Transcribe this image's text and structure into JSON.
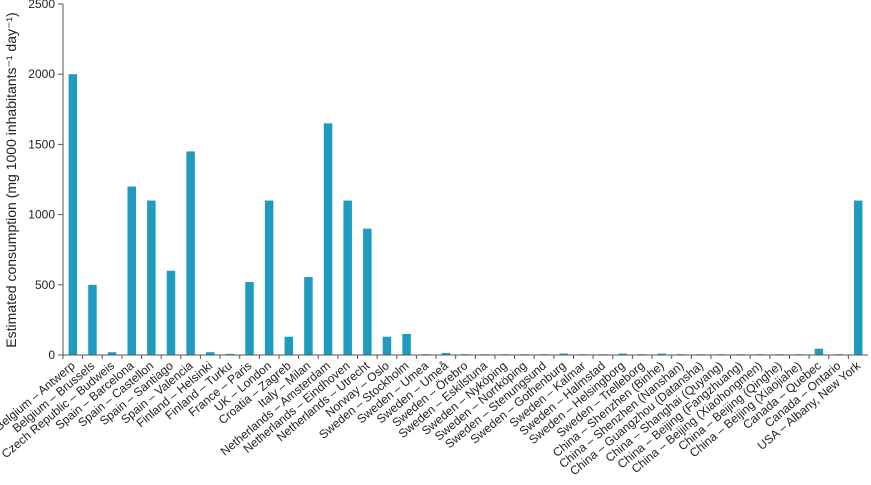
{
  "chart_data": {
    "type": "bar",
    "title": "",
    "xlabel": "",
    "ylabel": "Estimated consumption (mg 1000 inhabitants⁻¹ day⁻¹)",
    "ylim": [
      0,
      2500
    ],
    "yticks": [
      "0",
      "500",
      "1000",
      "1500",
      "2000",
      "2500"
    ],
    "grid": false,
    "bar_color": "#1f9bbf",
    "categories": [
      "Belgium – Antwerp",
      "Belgium – Brussels",
      "Czech Republic – Budweis",
      "Spain – Barcelona",
      "Spain – Castellon",
      "Spain – Santiago",
      "Spain – Valencia",
      "Finland – Helsinki",
      "Finland – Turku",
      "France – Paris",
      "UK – London",
      "Croatia – Zagreb",
      "Italy – Milan",
      "Netherlands – Amsterdam",
      "Netherlands – Eindhoven",
      "Netherlands – Utrecht",
      "Norway – Oslo",
      "Sweden – Stockholm",
      "Sweden – Umea",
      "Sweden – Umeå",
      "Sweden – Örebro",
      "Sweden – Eskilstuna",
      "Sweden – Nyköping",
      "Sweden – Norrköping",
      "Sweden – Stenungsund",
      "Sweden – Gothenburg",
      "Sweden – Kalmar",
      "Sweden – Halmstad",
      "Sweden – Helsingborg",
      "Sweden – Trelleborg",
      "China – Shenzhen (Binhe)",
      "China – Shenzhen (Nanshan)",
      "China – Guangzhou (Datansha)",
      "China – Shanghai (Quyang)",
      "China – Beijing (Fangzhuang)",
      "China – Beijing (Xiaohongmen)",
      "China – Beijing (Qinghe)",
      "China – Beijing (Xiaojiahe)",
      "Canada – Quebec",
      "Canada – Ontario",
      "USA – Albany, New York"
    ],
    "values": [
      2000,
      500,
      20,
      1200,
      1100,
      600,
      1450,
      20,
      8,
      520,
      1100,
      130,
      555,
      1650,
      1100,
      900,
      130,
      150,
      5,
      15,
      5,
      3,
      3,
      3,
      5,
      10,
      3,
      3,
      10,
      3,
      10,
      3,
      3,
      3,
      3,
      3,
      3,
      3,
      45,
      5,
      1100
    ]
  }
}
